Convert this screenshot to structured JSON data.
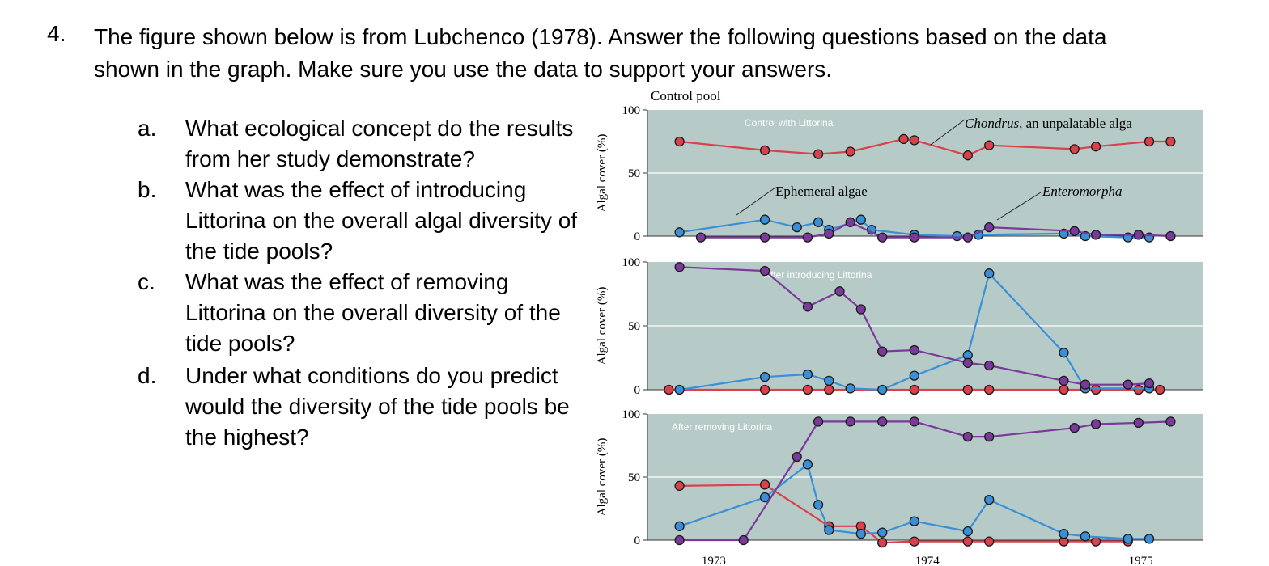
{
  "question": {
    "number": "4.",
    "text": "The figure shown below is from Lubchenco (1978). Answer the following questions based on the data shown in the graph. Make sure you use the data to support your answers.",
    "subquestions": [
      {
        "label": "a.",
        "text": "What ecological concept do the results from her study demonstrate?"
      },
      {
        "label": "b.",
        "text": "What was the effect of introducing Littorina on the overall algal diversity of the tide pools?"
      },
      {
        "label": "c.",
        "text": "What was the effect of removing Littorina on the overall diversity of the tide pools?"
      },
      {
        "label": "d.",
        "text": "Under what conditions do you predict would the diversity of the tide pools be the highest?"
      }
    ]
  },
  "figure": {
    "title": "Control pool",
    "ylabel": "Algal cover (%)",
    "colors": {
      "chondrus": "#d9414b",
      "ephemeral": "#3a8fd6",
      "enteromorpha": "#7a3a9a",
      "bg": "#b6cbc8"
    },
    "annotations": {
      "chondrus_label": "Chondrus",
      "chondrus_rest": ", an unpalatable alga",
      "ephemeral": "Ephemeral algae",
      "enteromorpha": "Enteromorpha"
    }
  },
  "chart_data": [
    {
      "type": "line",
      "title": "Control with Littorina",
      "ylabel": "Algal cover (%)",
      "ylim": [
        0,
        100
      ],
      "yticks": [
        "0",
        "50",
        "100"
      ],
      "series": [
        {
          "name": "Chondrus",
          "x": [
            1972.9,
            1973.3,
            1973.55,
            1973.7,
            1973.95,
            1974.0,
            1974.25,
            1974.35,
            1974.75,
            1974.85,
            1975.1,
            1975.2
          ],
          "values": [
            75,
            68,
            65,
            67,
            77,
            76,
            64,
            72,
            69,
            71,
            75,
            75
          ]
        },
        {
          "name": "Ephemeral algae",
          "x": [
            1972.9,
            1973.3,
            1973.45,
            1973.55,
            1973.6,
            1973.75,
            1973.8,
            1974.0,
            1974.2,
            1974.3,
            1974.7,
            1974.8,
            1975.0,
            1975.1
          ],
          "values": [
            3,
            13,
            7,
            11,
            5,
            13,
            5,
            1,
            0,
            1,
            2,
            0,
            -1,
            -1
          ]
        },
        {
          "name": "Enteromorpha",
          "x": [
            1973.0,
            1973.3,
            1973.5,
            1973.6,
            1973.7,
            1973.85,
            1974.0,
            1974.25,
            1974.35,
            1974.75,
            1974.85,
            1975.05,
            1975.2
          ],
          "values": [
            -1,
            -1,
            -1,
            2,
            11,
            -1,
            -1,
            -1,
            7,
            4,
            1,
            1,
            0
          ]
        }
      ]
    },
    {
      "type": "line",
      "title": "After introducing Littorina",
      "ylabel": "Algal cover (%)",
      "ylim": [
        0,
        100
      ],
      "yticks": [
        "0",
        "50",
        "100"
      ],
      "series": [
        {
          "name": "Chondrus",
          "x": [
            1972.85,
            1973.3,
            1973.5,
            1973.6,
            1974.0,
            1974.25,
            1974.35,
            1974.7,
            1974.85,
            1975.05,
            1975.15
          ],
          "values": [
            0,
            0,
            0,
            0,
            0,
            0,
            0,
            0,
            0,
            0,
            0
          ]
        },
        {
          "name": "Ephemeral algae",
          "x": [
            1972.9,
            1973.3,
            1973.5,
            1973.6,
            1973.7,
            1973.85,
            1974.0,
            1974.25,
            1974.35,
            1974.7,
            1974.8,
            1975.1
          ],
          "values": [
            0,
            10,
            12,
            7,
            1,
            0,
            11,
            27,
            91,
            29,
            1,
            1
          ]
        },
        {
          "name": "Enteromorpha",
          "x": [
            1972.9,
            1973.3,
            1973.5,
            1973.65,
            1973.75,
            1973.85,
            1974.0,
            1974.25,
            1974.35,
            1974.7,
            1974.8,
            1975.0,
            1975.1
          ],
          "values": [
            96,
            93,
            65,
            77,
            63,
            30,
            31,
            21,
            19,
            7,
            4,
            4,
            5
          ]
        }
      ]
    },
    {
      "type": "line",
      "title": "After removing Littorina",
      "ylabel": "Algal cover (%)",
      "ylim": [
        0,
        100
      ],
      "yticks": [
        "0",
        "50",
        "100"
      ],
      "xticks": [
        "1973",
        "1974",
        "1975"
      ],
      "series": [
        {
          "name": "Chondrus",
          "x": [
            1972.9,
            1973.3,
            1973.6,
            1973.75,
            1973.85,
            1974.0,
            1974.25,
            1974.35,
            1974.7,
            1974.85,
            1975.0
          ],
          "values": [
            43,
            44,
            11,
            11,
            -2,
            -1,
            -1,
            -1,
            -1,
            -1,
            -1
          ]
        },
        {
          "name": "Ephemeral algae",
          "x": [
            1972.9,
            1973.3,
            1973.5,
            1973.55,
            1973.6,
            1973.75,
            1973.85,
            1974.0,
            1974.25,
            1974.35,
            1974.7,
            1974.8,
            1975.0,
            1975.1
          ],
          "values": [
            11,
            34,
            60,
            28,
            8,
            5,
            6,
            15,
            7,
            32,
            5,
            3,
            1,
            1
          ]
        },
        {
          "name": "Enteromorpha",
          "x": [
            1972.9,
            1973.2,
            1973.45,
            1973.55,
            1973.7,
            1973.85,
            1974.0,
            1974.25,
            1974.35,
            1974.75,
            1974.85,
            1975.05,
            1975.2
          ],
          "values": [
            0,
            0,
            66,
            94,
            94,
            94,
            94,
            82,
            82,
            89,
            92,
            93,
            94
          ]
        }
      ]
    }
  ]
}
